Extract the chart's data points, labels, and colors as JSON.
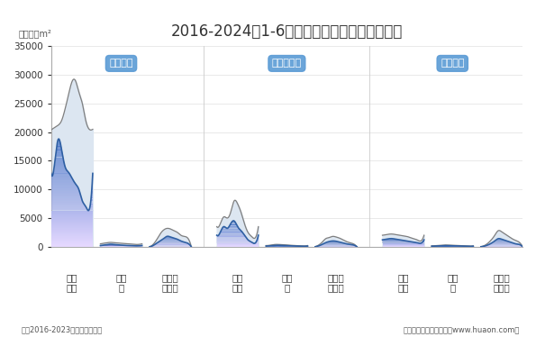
{
  "title": "2016-2024年1-6月云南省房地产施工面积情况",
  "unit_label": "单位：万m²",
  "footer_left": "注：2016-2023年为全年度数据",
  "footer_right": "制图：华经产业研究院（www.huaon.com）",
  "ylim": [
    0,
    35000
  ],
  "yticks": [
    0,
    5000,
    10000,
    15000,
    20000,
    25000,
    30000,
    35000
  ],
  "background_color": "#ffffff",
  "outer_line_color": "#7f7f7f",
  "outer_fill_color": "#dce6f1",
  "inner_line_color": "#2e5fa3",
  "inner_fill_color": "#4472c4",
  "label_box_color": "#5b9bd5",
  "label_text_color": "#ffffff",
  "group_labels": [
    "施工面积",
    "新开工面积",
    "竣工面积"
  ],
  "subcat_labels": [
    "商品\n住宅",
    "办公\n楼",
    "商业营\n业用房"
  ],
  "title_fontsize": 12,
  "tick_fontsize": 7.5,
  "label_fontsize": 8,
  "subcat_fontsize": 7.5,
  "groups": [
    {
      "label": "施工面积",
      "segs": [
        {
          "outer_y": [
            20400,
            20800,
            21200,
            22000,
            24000,
            26500,
            28800,
            29000,
            27000,
            25000,
            22000,
            20500,
            20500
          ],
          "inner_y": [
            12800,
            14500,
            18700,
            17000,
            14000,
            13000,
            12000,
            11000,
            10000,
            8000,
            7000,
            6500,
            12800
          ]
        },
        {
          "outer_y": [
            500,
            600,
            700,
            750,
            700,
            650,
            600,
            550,
            500,
            450,
            400,
            400,
            500
          ],
          "inner_y": [
            200,
            280,
            380,
            430,
            380,
            320,
            270,
            230,
            200,
            170,
            150,
            150,
            200
          ]
        },
        {
          "outer_y": [
            0,
            400,
            1200,
            2200,
            2900,
            3200,
            3100,
            2800,
            2500,
            2000,
            1800,
            1500,
            0
          ],
          "inner_y": [
            0,
            200,
            600,
            1000,
            1400,
            1800,
            1700,
            1500,
            1300,
            1000,
            800,
            600,
            0
          ]
        }
      ]
    },
    {
      "label": "新开工面积",
      "segs": [
        {
          "outer_y": [
            3500,
            4000,
            5200,
            5000,
            6000,
            8000,
            7500,
            6000,
            4000,
            2500,
            1800,
            1500,
            3500
          ],
          "inner_y": [
            2000,
            2500,
            3500,
            3200,
            4000,
            4500,
            3500,
            2800,
            2000,
            1200,
            800,
            600,
            2000
          ]
        },
        {
          "outer_y": [
            200,
            250,
            350,
            400,
            380,
            350,
            300,
            250,
            220,
            180,
            150,
            130,
            200
          ],
          "inner_y": [
            100,
            140,
            200,
            250,
            230,
            200,
            170,
            140,
            120,
            100,
            80,
            70,
            100
          ]
        },
        {
          "outer_y": [
            0,
            300,
            800,
            1400,
            1600,
            1800,
            1700,
            1500,
            1200,
            900,
            700,
            500,
            0
          ],
          "inner_y": [
            0,
            150,
            400,
            700,
            900,
            1000,
            950,
            800,
            650,
            500,
            400,
            300,
            0
          ]
        }
      ]
    },
    {
      "label": "竣工面积",
      "segs": [
        {
          "outer_y": [
            2000,
            2100,
            2200,
            2200,
            2100,
            2000,
            1900,
            1800,
            1600,
            1400,
            1200,
            1000,
            2000
          ],
          "inner_y": [
            1200,
            1300,
            1400,
            1400,
            1300,
            1200,
            1100,
            1000,
            900,
            800,
            700,
            600,
            1200
          ]
        },
        {
          "outer_y": [
            150,
            180,
            230,
            280,
            300,
            280,
            250,
            220,
            190,
            160,
            130,
            110,
            150
          ],
          "inner_y": [
            80,
            100,
            140,
            170,
            180,
            170,
            150,
            130,
            110,
            90,
            70,
            60,
            80
          ]
        },
        {
          "outer_y": [
            0,
            200,
            600,
            1200,
            2000,
            2800,
            2600,
            2200,
            1800,
            1400,
            1100,
            800,
            0
          ],
          "inner_y": [
            0,
            100,
            300,
            600,
            1000,
            1400,
            1300,
            1100,
            900,
            700,
            500,
            400,
            0
          ]
        }
      ]
    }
  ]
}
